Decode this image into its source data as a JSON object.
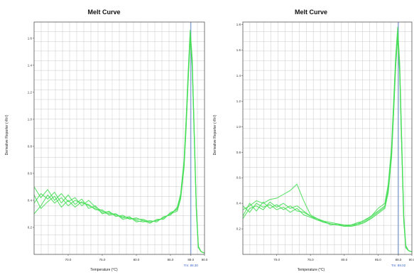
{
  "chart_data": [
    {
      "type": "line",
      "title": "Melt Curve",
      "xlabel": "Temperature (°C)",
      "ylabel": "Derivative Reporter (-Rn')",
      "xlim": [
        65.0,
        90.0
      ],
      "ylim": [
        0.0,
        1.72
      ],
      "xticks": [
        {
          "v": 70.0,
          "label": "70.0"
        },
        {
          "v": 75.0,
          "label": "75.0"
        },
        {
          "v": 80.0,
          "label": "80.0"
        },
        {
          "v": 85.0,
          "label": "85.0"
        },
        {
          "v": 88.0,
          "label": "88.0"
        },
        {
          "v": 90.0,
          "label": "90.0"
        }
      ],
      "yticks": [
        {
          "v": 0.2,
          "label": "0.2"
        },
        {
          "v": 0.4,
          "label": "0.4"
        },
        {
          "v": 0.6,
          "label": "0.6"
        },
        {
          "v": 0.8,
          "label": "0.8"
        },
        {
          "v": 1.0,
          "label": "1.0"
        },
        {
          "v": 1.2,
          "label": "1.2"
        },
        {
          "v": 1.4,
          "label": "1.4"
        },
        {
          "v": 1.6,
          "label": "1.6"
        }
      ],
      "tm_line": {
        "x": 88.0,
        "label": "Tm: 88.30"
      },
      "grid": true,
      "line_color": "#44dd55",
      "tm_color": "#6a8fd0",
      "series": [
        {
          "x": [
            65,
            66,
            67,
            68,
            69,
            70,
            71,
            72,
            73,
            74,
            75,
            76,
            77,
            78,
            79,
            80,
            81,
            82,
            83,
            84,
            85,
            86,
            86.5,
            87,
            87.3,
            87.6,
            87.9,
            88.2,
            88.5,
            88.8,
            89.1,
            89.5,
            90
          ],
          "values": [
            0.5,
            0.42,
            0.48,
            0.4,
            0.45,
            0.39,
            0.42,
            0.36,
            0.4,
            0.35,
            0.32,
            0.31,
            0.29,
            0.28,
            0.27,
            0.26,
            0.26,
            0.24,
            0.25,
            0.27,
            0.3,
            0.34,
            0.45,
            0.7,
            1.0,
            1.35,
            1.66,
            1.45,
            0.9,
            0.35,
            0.06,
            0.02,
            0.01
          ]
        },
        {
          "x": [
            65,
            66,
            67,
            68,
            69,
            70,
            71,
            72,
            73,
            74,
            75,
            76,
            77,
            78,
            79,
            80,
            81,
            82,
            83,
            84,
            85,
            86,
            86.5,
            87,
            87.3,
            87.6,
            87.9,
            88.2,
            88.5,
            88.8,
            89.1,
            89.5,
            90
          ],
          "values": [
            0.38,
            0.45,
            0.41,
            0.46,
            0.38,
            0.44,
            0.37,
            0.41,
            0.34,
            0.36,
            0.3,
            0.32,
            0.28,
            0.29,
            0.26,
            0.27,
            0.25,
            0.23,
            0.26,
            0.26,
            0.31,
            0.33,
            0.42,
            0.66,
            0.95,
            1.3,
            1.62,
            1.42,
            0.85,
            0.33,
            0.05,
            0.02,
            0.01
          ]
        },
        {
          "x": [
            65,
            66,
            67,
            68,
            69,
            70,
            71,
            72,
            73,
            74,
            75,
            76,
            77,
            78,
            79,
            80,
            81,
            82,
            83,
            84,
            85,
            86,
            86.5,
            87,
            87.3,
            87.6,
            87.9,
            88.2,
            88.5,
            88.8,
            89.1,
            89.5,
            90
          ],
          "values": [
            0.3,
            0.36,
            0.44,
            0.38,
            0.42,
            0.36,
            0.4,
            0.38,
            0.37,
            0.33,
            0.33,
            0.29,
            0.3,
            0.26,
            0.27,
            0.25,
            0.24,
            0.25,
            0.24,
            0.28,
            0.29,
            0.35,
            0.44,
            0.68,
            0.98,
            1.32,
            1.64,
            1.4,
            0.88,
            0.34,
            0.06,
            0.02,
            0.01
          ]
        },
        {
          "x": [
            65,
            66,
            67,
            68,
            69,
            70,
            71,
            72,
            73,
            74,
            75,
            76,
            77,
            78,
            79,
            80,
            81,
            82,
            83,
            84,
            85,
            86,
            86.5,
            87,
            87.3,
            87.6,
            87.9,
            88.2,
            88.5,
            88.8,
            89.1,
            89.5,
            90
          ],
          "values": [
            0.44,
            0.34,
            0.39,
            0.43,
            0.35,
            0.4,
            0.35,
            0.39,
            0.36,
            0.34,
            0.31,
            0.3,
            0.3,
            0.27,
            0.28,
            0.24,
            0.25,
            0.24,
            0.25,
            0.27,
            0.3,
            0.32,
            0.41,
            0.64,
            0.93,
            1.28,
            1.6,
            1.38,
            0.86,
            0.32,
            0.05,
            0.02,
            0.01
          ]
        }
      ]
    },
    {
      "type": "line",
      "title": "Melt Curve",
      "xlabel": "Temperature (°C)",
      "ylabel": "Derivative Reporter (-Rn')",
      "xlim": [
        65.0,
        90.0
      ],
      "ylim": [
        0.0,
        1.82
      ],
      "xticks": [
        {
          "v": 70.0,
          "label": "70.0"
        },
        {
          "v": 75.0,
          "label": "75.0"
        },
        {
          "v": 80.0,
          "label": "80.0"
        },
        {
          "v": 85.0,
          "label": "85.0"
        },
        {
          "v": 88.0,
          "label": "88.0"
        },
        {
          "v": 90.0,
          "label": "90.0"
        }
      ],
      "yticks": [
        {
          "v": 0.2,
          "label": "0.2"
        },
        {
          "v": 0.4,
          "label": "0.4"
        },
        {
          "v": 0.6,
          "label": "0.6"
        },
        {
          "v": 0.8,
          "label": "0.8"
        },
        {
          "v": 1.0,
          "label": "1.0"
        },
        {
          "v": 1.2,
          "label": "1.2"
        },
        {
          "v": 1.4,
          "label": "1.4"
        },
        {
          "v": 1.6,
          "label": "1.6"
        },
        {
          "v": 1.8,
          "label": "1.8"
        }
      ],
      "tm_line": {
        "x": 88.0,
        "label": "Tm: 88.02"
      },
      "grid": true,
      "line_color": "#44dd55",
      "tm_color": "#6a8fd0",
      "series": [
        {
          "x": [
            65,
            66,
            67,
            68,
            69,
            70,
            71,
            72,
            73,
            74,
            75,
            76,
            77,
            78,
            79,
            80,
            81,
            82,
            83,
            84,
            85,
            86,
            86.5,
            87,
            87.3,
            87.6,
            87.9,
            88.2,
            88.5,
            88.8,
            89.1,
            89.5,
            90
          ],
          "values": [
            0.35,
            0.38,
            0.42,
            0.4,
            0.43,
            0.44,
            0.47,
            0.5,
            0.55,
            0.42,
            0.31,
            0.28,
            0.26,
            0.25,
            0.24,
            0.23,
            0.23,
            0.24,
            0.27,
            0.3,
            0.36,
            0.4,
            0.55,
            0.85,
            1.2,
            1.55,
            1.78,
            1.5,
            0.9,
            0.3,
            0.07,
            0.03,
            0.02
          ]
        },
        {
          "x": [
            65,
            66,
            67,
            68,
            69,
            70,
            71,
            72,
            73,
            74,
            75,
            76,
            77,
            78,
            79,
            80,
            81,
            82,
            83,
            84,
            85,
            86,
            86.5,
            87,
            87.3,
            87.6,
            87.9,
            88.2,
            88.5,
            88.8,
            89.1,
            89.5,
            90
          ],
          "values": [
            0.3,
            0.4,
            0.34,
            0.41,
            0.36,
            0.39,
            0.35,
            0.38,
            0.34,
            0.33,
            0.3,
            0.27,
            0.25,
            0.24,
            0.23,
            0.22,
            0.23,
            0.25,
            0.26,
            0.3,
            0.34,
            0.38,
            0.52,
            0.8,
            1.15,
            1.5,
            1.74,
            1.46,
            0.86,
            0.28,
            0.06,
            0.03,
            0.02
          ]
        },
        {
          "x": [
            65,
            66,
            67,
            68,
            69,
            70,
            71,
            72,
            73,
            74,
            75,
            76,
            77,
            78,
            79,
            80,
            81,
            82,
            83,
            84,
            85,
            86,
            86.5,
            87,
            87.3,
            87.6,
            87.9,
            88.2,
            88.5,
            88.8,
            89.1,
            89.5,
            90
          ],
          "values": [
            0.38,
            0.33,
            0.4,
            0.37,
            0.39,
            0.35,
            0.37,
            0.33,
            0.36,
            0.31,
            0.29,
            0.27,
            0.26,
            0.23,
            0.24,
            0.22,
            0.22,
            0.24,
            0.25,
            0.29,
            0.33,
            0.37,
            0.5,
            0.78,
            1.12,
            1.48,
            1.72,
            1.44,
            0.84,
            0.27,
            0.06,
            0.03,
            0.02
          ]
        },
        {
          "x": [
            65,
            66,
            67,
            68,
            69,
            70,
            71,
            72,
            73,
            74,
            75,
            76,
            77,
            78,
            79,
            80,
            81,
            82,
            83,
            84,
            85,
            86,
            86.5,
            87,
            87.3,
            87.6,
            87.9,
            88.2,
            88.5,
            88.8,
            89.1,
            89.5,
            90
          ],
          "values": [
            0.28,
            0.36,
            0.38,
            0.35,
            0.41,
            0.37,
            0.4,
            0.36,
            0.38,
            0.34,
            0.3,
            0.28,
            0.25,
            0.24,
            0.23,
            0.23,
            0.22,
            0.23,
            0.25,
            0.28,
            0.32,
            0.36,
            0.48,
            0.76,
            1.1,
            1.46,
            1.7,
            1.42,
            0.82,
            0.26,
            0.05,
            0.03,
            0.02
          ]
        }
      ]
    }
  ]
}
